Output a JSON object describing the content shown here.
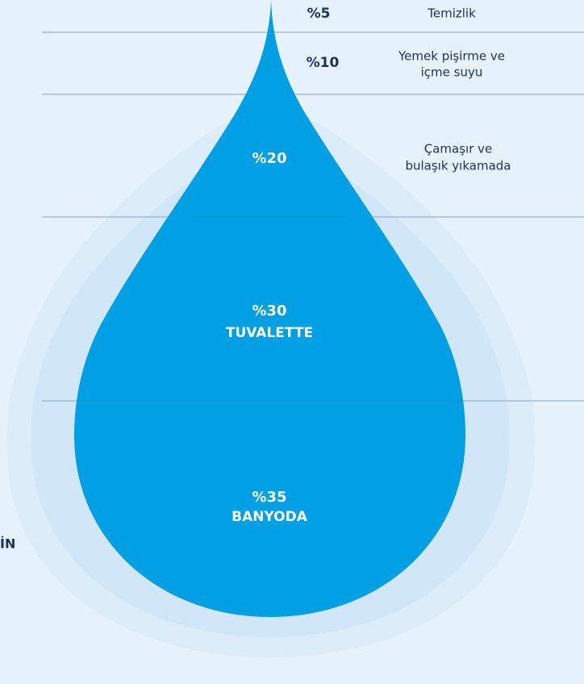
{
  "segments": [
    {
      "percent": "%5",
      "label": [
        "Temizlik"
      ]
    },
    {
      "percent": "%10",
      "label": [
        "Yemek pişirme ve",
        "içme suyu"
      ]
    },
    {
      "percent": "%20",
      "label": [
        "Çamaşır ve",
        "bulaşık yıkamada"
      ]
    },
    {
      "percent": "%30",
      "label": [
        "TUVALETTE"
      ]
    },
    {
      "percent": "%35",
      "label": [
        "BANYODA"
      ]
    }
  ],
  "side_text": "İN"
}
